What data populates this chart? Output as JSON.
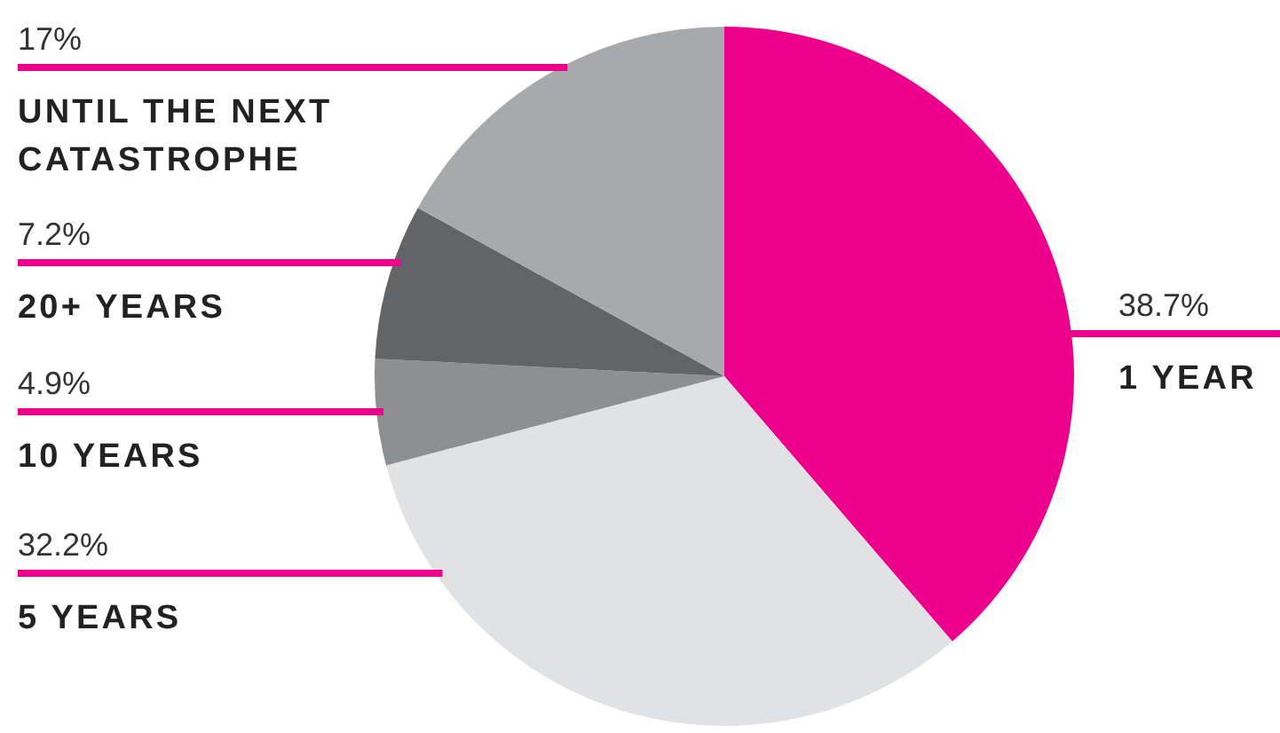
{
  "chart_data": {
    "type": "pie",
    "categories": [
      "1 YEAR",
      "5 YEARS",
      "10 YEARS",
      "20+ YEARS",
      "UNTIL THE NEXT CATASTROPHE"
    ],
    "values": [
      38.7,
      32.2,
      4.9,
      7.2,
      17
    ],
    "colors": [
      "#ec008c",
      "#e1e2e4",
      "#8e8f91",
      "#636466",
      "#a8a9ab"
    ],
    "value_labels": [
      "38.7%",
      "32.2%",
      "4.9%",
      "7.2%",
      "17%"
    ]
  }
}
